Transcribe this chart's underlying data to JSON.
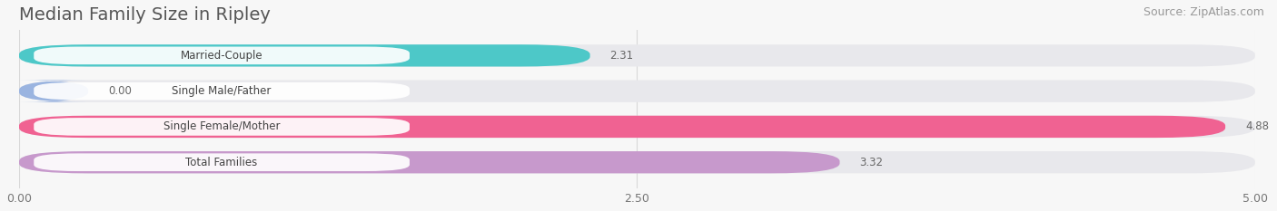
{
  "title": "Median Family Size in Ripley",
  "source": "Source: ZipAtlas.com",
  "categories": [
    "Married-Couple",
    "Single Male/Father",
    "Single Female/Mother",
    "Total Families"
  ],
  "values": [
    2.31,
    0.0,
    4.88,
    3.32
  ],
  "bar_colors": [
    "#4dc8c8",
    "#9ab4e0",
    "#f06292",
    "#c799cc"
  ],
  "bar_bg_color": "#e8e8ec",
  "xlim": [
    0,
    5.0
  ],
  "xticks": [
    0.0,
    2.5,
    5.0
  ],
  "xtick_labels": [
    "0.00",
    "2.50",
    "5.00"
  ],
  "bg_color": "#f7f7f7",
  "title_fontsize": 14,
  "source_fontsize": 9,
  "bar_height": 0.62,
  "value_color": "#666666",
  "label_text_color": "#444444",
  "grid_color": "#d8d8d8",
  "title_color": "#555555",
  "source_color": "#999999"
}
